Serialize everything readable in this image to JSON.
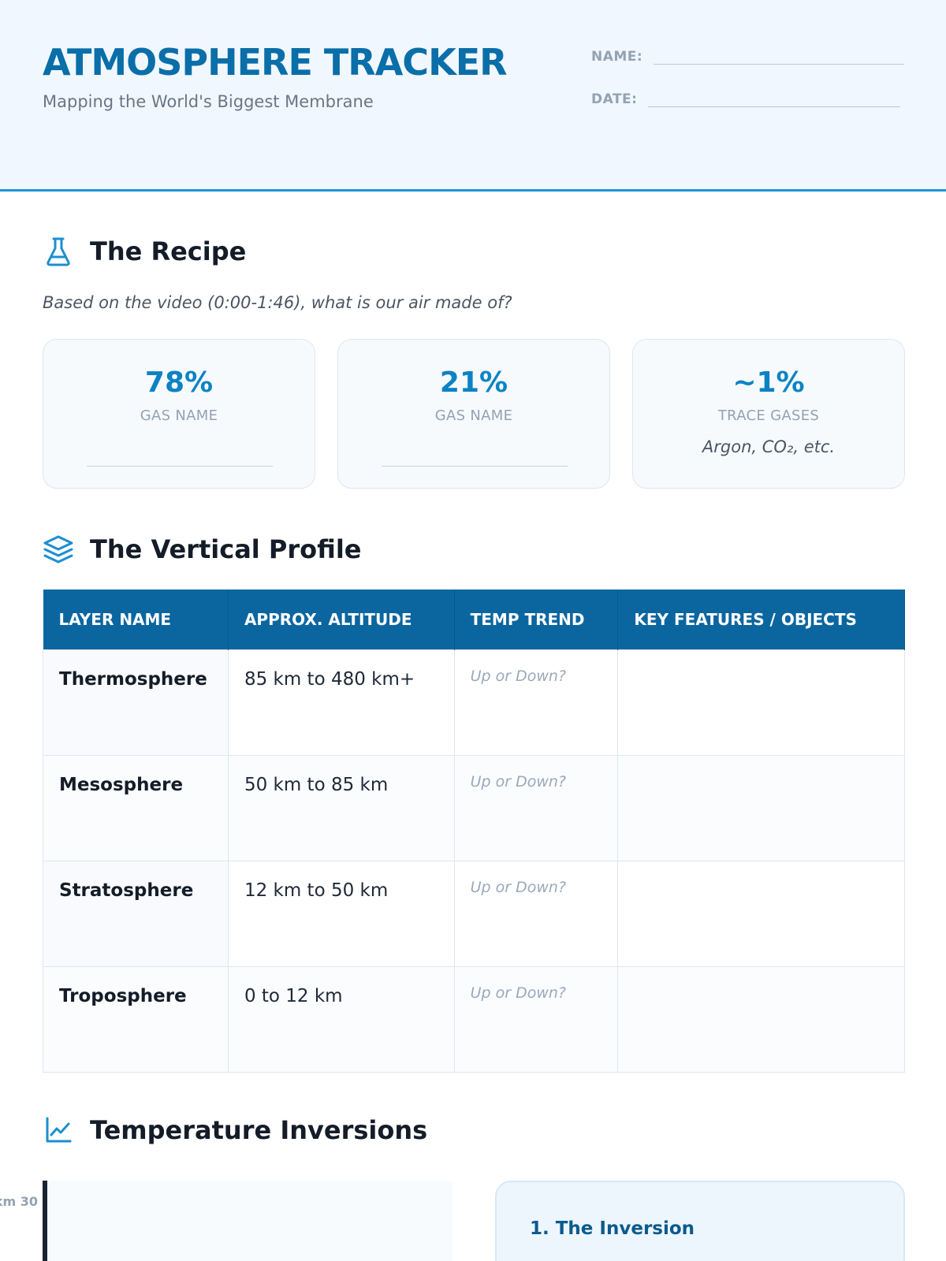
{
  "header": {
    "title": "ATMOSPHERE TRACKER",
    "subtitle": "Mapping the World's Biggest Membrane",
    "name_label": "NAME:",
    "date_label": "DATE:"
  },
  "recipe": {
    "icon": "flask-icon",
    "title": "The Recipe",
    "prompt": "Based on the video (0:00-1:46), what is our air made of?",
    "cards": [
      {
        "percent": "78%",
        "label": "GAS NAME"
      },
      {
        "percent": "21%",
        "label": "GAS NAME"
      },
      {
        "percent": "~1%",
        "label": "TRACE GASES",
        "note": "Argon, CO₂, etc."
      }
    ]
  },
  "profile": {
    "icon": "layers-icon",
    "title": "The Vertical Profile",
    "columns": [
      "LAYER NAME",
      "APPROX. ALTITUDE",
      "TEMP TREND",
      "KEY FEATURES / OBJECTS"
    ],
    "rows": [
      {
        "layer": "Thermosphere",
        "altitude": "85 km to 480 km+",
        "temp": "Up or Down?",
        "features": ""
      },
      {
        "layer": "Mesosphere",
        "altitude": "50 km to 85 km",
        "temp": "Up or Down?",
        "features": ""
      },
      {
        "layer": "Stratosphere",
        "altitude": "12 km to 50 km",
        "temp": "Up or Down?",
        "features": ""
      },
      {
        "layer": "Troposphere",
        "altitude": "0 to 12 km",
        "temp": "Up or Down?",
        "features": ""
      }
    ]
  },
  "inversions": {
    "icon": "line-chart-icon",
    "title": "Temperature Inversions",
    "axis_tick": "30 km",
    "panel_title": "1. The Inversion"
  },
  "colors": {
    "accent": "#0a83c4",
    "title": "#0a6ea8",
    "table_header": "#0b66a0",
    "header_bg": "#f0f7ff"
  }
}
